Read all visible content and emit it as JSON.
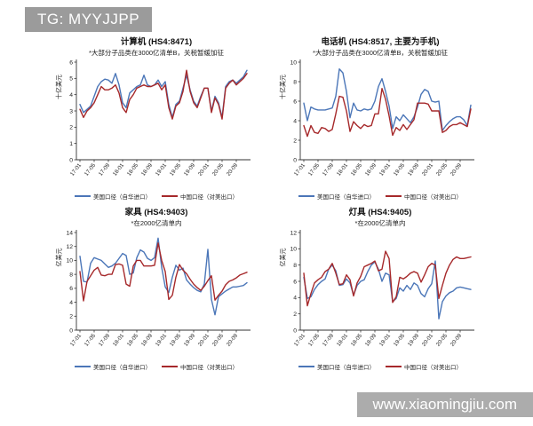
{
  "banner": {
    "text": "TG: MYYJJPP"
  },
  "watermark": {
    "text": "www.xiaomingjiu.com"
  },
  "colors": {
    "us_line": "#4B76B8",
    "cn_line": "#A6292B",
    "axis": "#333333",
    "banner_bg": "#9B9B9B",
    "banner_text": "#FFFFFF"
  },
  "legend": {
    "us_label": "美国口径（自华进口）",
    "cn_label": "中国口径（对美出口）"
  },
  "chart_data": [
    {
      "type": "line",
      "title": "计算机 (HS4:8471)",
      "subtitle": "*大部分子品类在3000亿清单B，关税暂缓加征",
      "ylabel": "十亿美元",
      "ylim": [
        0,
        6
      ],
      "ystep": 1,
      "x_tick_labels": [
        "17-01",
        "17-05",
        "17-09",
        "18-01",
        "18-05",
        "18-09",
        "19-01",
        "19-05",
        "19-09",
        "20-01",
        "20-05",
        "20-09"
      ],
      "x_tick_indices": [
        0,
        4,
        8,
        12,
        16,
        20,
        24,
        28,
        32,
        36,
        40,
        44
      ],
      "series": [
        {
          "key": "us",
          "name": "美国口径（自华进口）",
          "color": "#4B76B8",
          "values": [
            3.4,
            2.9,
            3.1,
            3.3,
            3.9,
            4.5,
            4.8,
            4.95,
            4.9,
            4.7,
            5.3,
            4.6,
            3.5,
            3.2,
            4.1,
            4.3,
            4.5,
            4.6,
            5.2,
            4.6,
            4.5,
            4.6,
            4.9,
            4.5,
            4.8,
            3.4,
            2.6,
            3.4,
            3.6,
            4.4,
            5.2,
            4.3,
            3.6,
            3.3,
            3.9,
            4.4,
            4.4,
            3.0,
            3.9,
            3.5,
            2.6,
            4.5,
            4.8,
            4.9,
            4.7,
            4.9,
            5.1,
            5.5
          ]
        },
        {
          "key": "cn",
          "name": "中国口径（对美出口）",
          "color": "#A6292B",
          "values": [
            3.1,
            2.6,
            3.0,
            3.2,
            3.5,
            4.0,
            4.5,
            4.3,
            4.3,
            4.4,
            4.6,
            4.1,
            3.2,
            2.9,
            3.7,
            4.0,
            4.4,
            4.5,
            4.6,
            4.5,
            4.5,
            4.6,
            4.7,
            4.3,
            4.6,
            3.2,
            2.5,
            3.3,
            3.5,
            4.2,
            5.5,
            4.2,
            3.5,
            3.2,
            3.8,
            4.4,
            4.4,
            2.9,
            3.8,
            3.4,
            2.5,
            4.4,
            4.7,
            4.9,
            4.6,
            4.8,
            5.0,
            5.3
          ]
        }
      ]
    },
    {
      "type": "line",
      "title": "电话机 (HS4:8517, 主要为手机)",
      "subtitle": "*大部分子品类在3000亿清单B，关税暂缓加征",
      "ylabel": "十亿美元",
      "ylim": [
        0,
        10
      ],
      "ystep": 2,
      "x_tick_labels": [
        "17-01",
        "17-05",
        "17-09",
        "18-01",
        "18-05",
        "18-09",
        "19-01",
        "19-05",
        "19-09",
        "20-01",
        "20-05",
        "20-09"
      ],
      "x_tick_indices": [
        0,
        4,
        8,
        12,
        16,
        20,
        24,
        28,
        32,
        36,
        40,
        44
      ],
      "series": [
        {
          "key": "us",
          "name": "美国口径（自华进口）",
          "color": "#4B76B8",
          "values": [
            5.8,
            4.0,
            5.4,
            5.2,
            5.1,
            5.1,
            5.1,
            5.2,
            5.3,
            6.5,
            9.3,
            8.9,
            7.0,
            4.3,
            5.8,
            5.1,
            5.0,
            5.2,
            5.1,
            5.2,
            6.0,
            7.5,
            8.3,
            7.0,
            5.5,
            3.2,
            4.4,
            4.0,
            4.6,
            4.2,
            3.8,
            4.4,
            5.4,
            6.7,
            7.2,
            7.0,
            6.0,
            5.9,
            6.0,
            3.0,
            3.5,
            3.9,
            4.2,
            4.4,
            4.4,
            4.1,
            3.5,
            5.6
          ]
        },
        {
          "key": "cn",
          "name": "中国口径（对美出口）",
          "color": "#A6292B",
          "values": [
            3.5,
            2.4,
            3.5,
            2.8,
            2.7,
            3.3,
            3.2,
            2.9,
            3.1,
            4.7,
            6.5,
            6.4,
            5.0,
            2.9,
            3.9,
            3.5,
            3.2,
            3.6,
            3.4,
            3.5,
            4.7,
            4.7,
            7.3,
            6.2,
            4.5,
            2.5,
            3.3,
            3.0,
            3.6,
            3.1,
            3.6,
            4.1,
            5.8,
            5.8,
            5.8,
            5.7,
            5.0,
            5.0,
            5.0,
            2.8,
            3.0,
            3.4,
            3.6,
            3.6,
            3.8,
            3.6,
            3.4,
            5.2
          ]
        }
      ]
    },
    {
      "type": "line",
      "title": "家具 (HS4:9403)",
      "subtitle": "*在2000亿清单内",
      "ylabel": "亿美元",
      "ylim": [
        0,
        14
      ],
      "ystep": 2,
      "x_tick_labels": [
        "17-01",
        "17-05",
        "17-09",
        "18-01",
        "18-05",
        "18-09",
        "19-01",
        "19-05",
        "19-09",
        "20-01",
        "20-05",
        "20-09"
      ],
      "x_tick_indices": [
        0,
        4,
        8,
        12,
        16,
        20,
        24,
        28,
        32,
        36,
        40,
        44
      ],
      "series": [
        {
          "key": "us",
          "name": "美国口径（自华进口）",
          "color": "#4B76B8",
          "values": [
            10.6,
            7.0,
            6.9,
            9.6,
            10.4,
            10.2,
            10.0,
            9.5,
            9.0,
            9.2,
            9.6,
            10.3,
            11.0,
            10.7,
            8.0,
            8.2,
            10.4,
            11.5,
            11.2,
            10.3,
            10.0,
            10.4,
            13.2,
            9.0,
            6.2,
            5.4,
            7.6,
            9.3,
            8.6,
            8.9,
            7.2,
            6.6,
            6.1,
            5.7,
            5.5,
            6.6,
            11.6,
            4.4,
            2.2,
            4.8,
            5.2,
            5.6,
            5.9,
            6.2,
            6.2,
            6.3,
            6.4,
            6.8
          ]
        },
        {
          "key": "cn",
          "name": "中国口径（对美出口）",
          "color": "#A6292B",
          "values": [
            8.4,
            4.2,
            7.0,
            7.8,
            8.6,
            9.0,
            7.9,
            7.8,
            8.0,
            8.0,
            9.4,
            9.5,
            9.3,
            6.6,
            6.3,
            9.2,
            10.0,
            10.0,
            9.2,
            9.2,
            9.2,
            9.3,
            12.5,
            10.0,
            8.4,
            4.4,
            5.0,
            7.6,
            9.4,
            8.6,
            8.1,
            7.3,
            6.6,
            6.1,
            5.7,
            6.3,
            7.1,
            7.8,
            4.3,
            5.0,
            5.6,
            6.5,
            7.0,
            7.2,
            7.5,
            7.9,
            8.1,
            8.3
          ]
        }
      ]
    },
    {
      "type": "line",
      "title": "灯具 (HS4:9405)",
      "subtitle": "*在2000亿清单内",
      "ylabel": "亿美元",
      "ylim": [
        0,
        12
      ],
      "ystep": 2,
      "x_tick_labels": [
        "17-01",
        "17-05",
        "17-09",
        "18-01",
        "18-05",
        "18-09",
        "19-01",
        "19-05",
        "19-09",
        "20-01",
        "20-05",
        "20-09"
      ],
      "x_tick_indices": [
        0,
        4,
        8,
        12,
        16,
        20,
        24,
        28,
        32,
        36,
        40,
        44
      ],
      "series": [
        {
          "key": "us",
          "name": "美国口径（自华进口）",
          "color": "#4B76B8",
          "values": [
            6.5,
            3.9,
            4.1,
            5.0,
            5.6,
            6.0,
            6.3,
            7.5,
            8.0,
            7.3,
            5.5,
            5.6,
            6.3,
            5.8,
            4.3,
            5.5,
            6.0,
            6.2,
            7.2,
            8.0,
            8.4,
            7.5,
            6.0,
            7.0,
            6.8,
            3.5,
            3.9,
            5.2,
            4.8,
            5.5,
            5.0,
            5.8,
            5.5,
            4.5,
            4.1,
            5.1,
            5.7,
            8.5,
            1.4,
            3.5,
            4.2,
            4.6,
            4.8,
            5.2,
            5.3,
            5.2,
            5.1,
            5.0
          ]
        },
        {
          "key": "cn",
          "name": "中国口径（对美出口）",
          "color": "#A6292B",
          "values": [
            7.0,
            3.0,
            4.5,
            5.8,
            6.2,
            6.5,
            7.2,
            7.5,
            8.2,
            7.0,
            5.6,
            5.7,
            6.8,
            6.2,
            4.2,
            5.8,
            6.6,
            7.8,
            8.0,
            8.2,
            8.5,
            7.3,
            7.5,
            9.7,
            8.8,
            3.4,
            4.1,
            6.5,
            6.3,
            6.6,
            7.0,
            7.2,
            7.0,
            5.9,
            6.8,
            7.8,
            8.2,
            8.0,
            3.9,
            5.5,
            7.0,
            8.0,
            8.7,
            9.0,
            8.8,
            8.8,
            8.9,
            9.0
          ]
        }
      ]
    }
  ]
}
